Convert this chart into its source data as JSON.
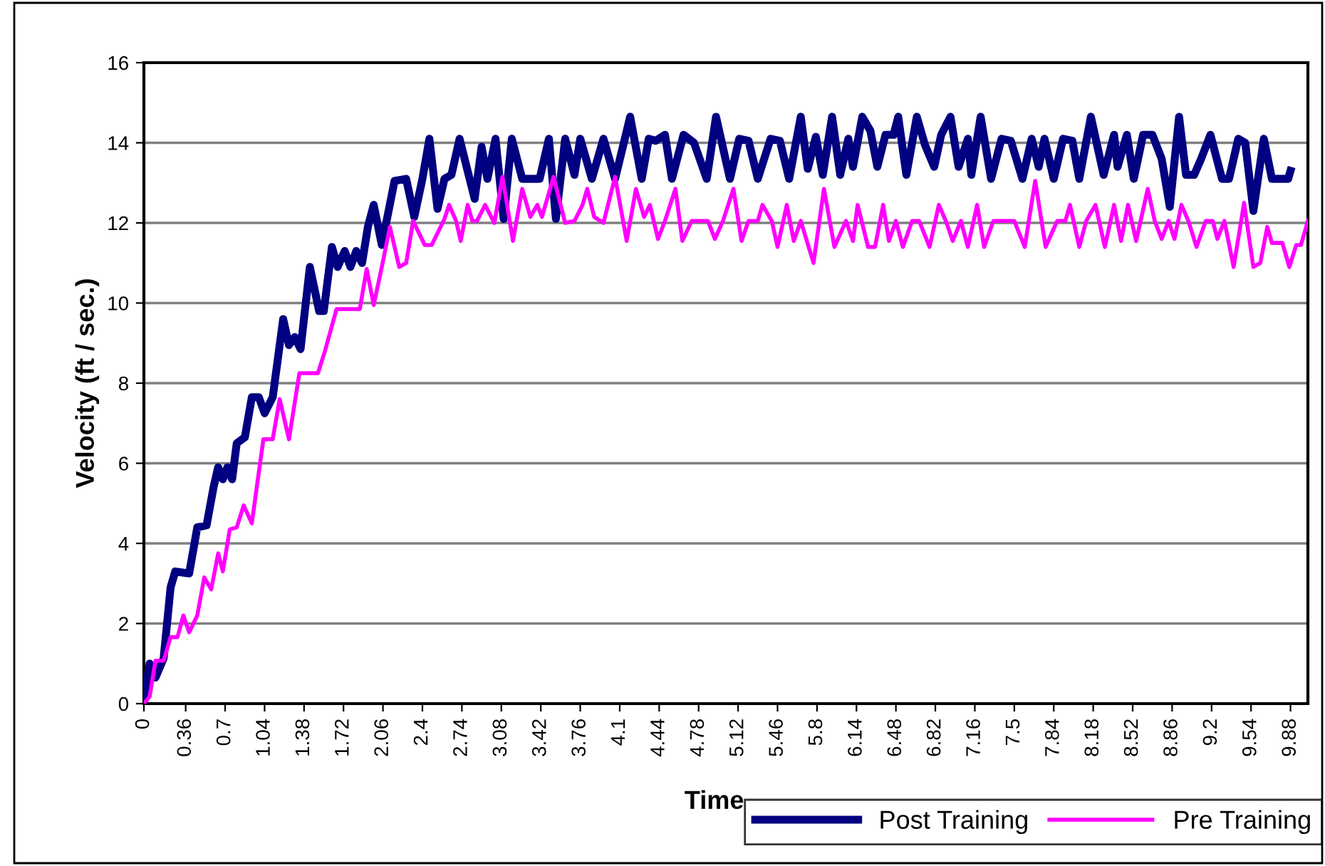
{
  "chart_data": {
    "type": "line",
    "xlabel": "Time",
    "ylabel": "Velocity (ft / sec.)",
    "xlim": [
      0,
      10.03
    ],
    "ylim": [
      0,
      16
    ],
    "yticks": [
      0,
      2,
      4,
      6,
      8,
      10,
      12,
      14,
      16
    ],
    "xticks": [
      0,
      0.36,
      0.7,
      1.04,
      1.38,
      1.72,
      2.06,
      2.4,
      2.74,
      3.08,
      3.42,
      3.76,
      4.1,
      4.44,
      4.78,
      5.12,
      5.46,
      5.8,
      6.14,
      6.48,
      6.82,
      7.16,
      7.5,
      7.84,
      8.18,
      8.52,
      8.86,
      9.2,
      9.54,
      9.88
    ],
    "grid": "y",
    "legend": "bottom right",
    "marker": "none",
    "line_style": "solid",
    "series": [
      {
        "name": "Post Training",
        "color": "#000080",
        "x": [
          0,
          0.05,
          0.1,
          0.17,
          0.23,
          0.27,
          0.39,
          0.46,
          0.54,
          0.6,
          0.64,
          0.68,
          0.72,
          0.76,
          0.8,
          0.87,
          0.93,
          0.99,
          1.04,
          1.11,
          1.2,
          1.25,
          1.3,
          1.35,
          1.43,
          1.51,
          1.55,
          1.62,
          1.67,
          1.73,
          1.78,
          1.83,
          1.88,
          1.93,
          1.98,
          2.05,
          2.16,
          2.26,
          2.33,
          2.4,
          2.46,
          2.53,
          2.59,
          2.65,
          2.72,
          2.85,
          2.91,
          2.96,
          3.03,
          3.1,
          3.17,
          3.26,
          3.41,
          3.49,
          3.55,
          3.63,
          3.71,
          3.76,
          3.86,
          3.96,
          4.06,
          4.19,
          4.29,
          4.35,
          4.41,
          4.49,
          4.55,
          4.65,
          4.74,
          4.85,
          4.93,
          5.05,
          5.13,
          5.21,
          5.29,
          5.4,
          5.48,
          5.56,
          5.66,
          5.72,
          5.79,
          5.85,
          5.93,
          6.0,
          6.07,
          6.11,
          6.19,
          6.26,
          6.32,
          6.39,
          6.46,
          6.5,
          6.57,
          6.66,
          6.73,
          6.81,
          6.87,
          6.95,
          7.02,
          7.1,
          7.13,
          7.21,
          7.3,
          7.39,
          7.47,
          7.57,
          7.65,
          7.71,
          7.76,
          7.84,
          7.92,
          8.0,
          8.06,
          8.16,
          8.27,
          8.36,
          8.39,
          8.47,
          8.53,
          8.61,
          8.69,
          8.77,
          8.84,
          8.92,
          8.98,
          9.05,
          9.11,
          9.19,
          9.29,
          9.35,
          9.43,
          9.49,
          9.56,
          9.65,
          9.72,
          9.86,
          9.88
        ],
        "values": [
          0,
          1.0,
          0.65,
          1.13,
          2.9,
          3.3,
          3.25,
          4.4,
          4.45,
          5.4,
          5.9,
          5.6,
          5.9,
          5.6,
          6.5,
          6.65,
          7.65,
          7.65,
          7.25,
          7.65,
          9.6,
          8.95,
          9.15,
          8.85,
          10.9,
          9.8,
          9.8,
          11.4,
          10.9,
          11.3,
          10.9,
          11.3,
          11.0,
          11.9,
          12.45,
          11.45,
          13.05,
          13.1,
          12.15,
          13.1,
          14.1,
          12.35,
          13.1,
          13.2,
          14.1,
          12.6,
          13.9,
          13.1,
          14.1,
          12.1,
          14.1,
          13.1,
          13.1,
          14.1,
          12.1,
          14.1,
          13.2,
          14.1,
          13.1,
          14.1,
          13.1,
          14.65,
          13.1,
          14.1,
          14.05,
          14.2,
          13.1,
          14.2,
          14.0,
          13.1,
          14.65,
          13.1,
          14.1,
          14.05,
          13.1,
          14.1,
          14.05,
          13.1,
          14.65,
          13.35,
          14.15,
          13.2,
          14.65,
          13.2,
          14.1,
          13.4,
          14.65,
          14.3,
          13.4,
          14.2,
          14.2,
          14.65,
          13.2,
          14.65,
          13.95,
          13.4,
          14.2,
          14.65,
          13.4,
          14.1,
          13.2,
          14.65,
          13.1,
          14.1,
          14.05,
          13.1,
          14.1,
          13.4,
          14.1,
          13.1,
          14.1,
          14.05,
          13.1,
          14.65,
          13.2,
          14.2,
          13.4,
          14.2,
          13.1,
          14.2,
          14.2,
          13.6,
          12.4,
          14.65,
          13.2,
          13.2,
          13.6,
          14.2,
          13.1,
          13.1,
          14.1,
          14.0,
          12.3,
          14.1,
          13.1,
          13.1,
          13.3
        ]
      },
      {
        "name": "Pre Training",
        "color": "#ff00ff",
        "x": [
          0,
          0.05,
          0.1,
          0.17,
          0.23,
          0.29,
          0.34,
          0.39,
          0.46,
          0.52,
          0.58,
          0.64,
          0.68,
          0.74,
          0.8,
          0.86,
          0.93,
          0.97,
          1.03,
          1.11,
          1.17,
          1.25,
          1.34,
          1.5,
          1.56,
          1.66,
          1.86,
          1.92,
          1.98,
          2.05,
          2.12,
          2.2,
          2.26,
          2.32,
          2.42,
          2.48,
          2.59,
          2.63,
          2.69,
          2.73,
          2.79,
          2.83,
          2.87,
          2.94,
          3.02,
          3.09,
          3.18,
          3.26,
          3.33,
          3.39,
          3.43,
          3.53,
          3.63,
          3.71,
          3.78,
          3.82,
          3.88,
          3.96,
          4.06,
          4.16,
          4.24,
          4.31,
          4.36,
          4.43,
          4.49,
          4.58,
          4.64,
          4.72,
          4.86,
          4.92,
          4.99,
          5.08,
          5.15,
          5.21,
          5.29,
          5.33,
          5.41,
          5.46,
          5.54,
          5.6,
          5.66,
          5.77,
          5.86,
          5.95,
          6.05,
          6.11,
          6.15,
          6.24,
          6.3,
          6.37,
          6.42,
          6.48,
          6.54,
          6.62,
          6.68,
          6.77,
          6.85,
          6.91,
          6.97,
          7.04,
          7.1,
          7.18,
          7.24,
          7.32,
          7.5,
          7.59,
          7.68,
          7.77,
          7.87,
          7.94,
          7.98,
          8.06,
          8.12,
          8.2,
          8.28,
          8.36,
          8.42,
          8.48,
          8.55,
          8.65,
          8.71,
          8.77,
          8.83,
          8.88,
          8.94,
          9.0,
          9.07,
          9.15,
          9.21,
          9.25,
          9.31,
          9.39,
          9.48,
          9.56,
          9.62,
          9.68,
          9.72,
          9.81,
          9.87,
          9.93,
          9.97,
          10.03
        ],
        "values": [
          0,
          0.18,
          1.07,
          1.07,
          1.66,
          1.66,
          2.2,
          1.78,
          2.2,
          3.15,
          2.85,
          3.75,
          3.3,
          4.35,
          4.4,
          4.95,
          4.5,
          5.35,
          6.6,
          6.6,
          7.6,
          6.6,
          8.25,
          8.25,
          8.8,
          9.85,
          9.85,
          10.85,
          9.95,
          10.9,
          11.9,
          10.9,
          11.0,
          12.05,
          11.45,
          11.45,
          12.1,
          12.45,
          12.05,
          11.55,
          12.45,
          12.05,
          12.05,
          12.45,
          12.0,
          13.15,
          11.55,
          12.85,
          12.15,
          12.45,
          12.15,
          13.15,
          12.0,
          12.05,
          12.45,
          12.85,
          12.15,
          12.0,
          13.15,
          11.55,
          12.85,
          12.15,
          12.45,
          11.6,
          12.05,
          12.85,
          11.55,
          12.05,
          12.05,
          11.6,
          12.05,
          12.85,
          11.55,
          12.05,
          12.05,
          12.45,
          12.05,
          11.4,
          12.45,
          11.55,
          12.05,
          11.0,
          12.85,
          11.4,
          12.05,
          11.55,
          12.45,
          11.4,
          11.4,
          12.45,
          11.55,
          12.05,
          11.4,
          12.05,
          12.05,
          11.4,
          12.45,
          12.05,
          11.55,
          12.05,
          11.4,
          12.45,
          11.4,
          12.05,
          12.05,
          11.4,
          13.05,
          11.4,
          12.05,
          12.05,
          12.45,
          11.4,
          12.05,
          12.45,
          11.4,
          12.45,
          11.55,
          12.45,
          11.55,
          12.85,
          12.05,
          11.6,
          12.05,
          11.6,
          12.45,
          12.05,
          11.4,
          12.05,
          12.05,
          11.6,
          12.05,
          10.9,
          12.5,
          10.9,
          11.0,
          11.9,
          11.5,
          11.5,
          10.9,
          11.45,
          11.45,
          12.05
        ]
      }
    ]
  }
}
